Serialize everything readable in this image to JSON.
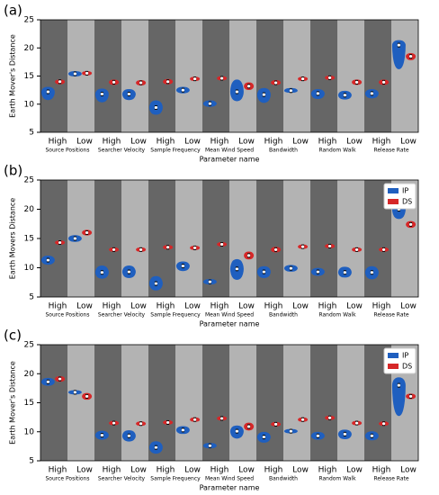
{
  "chart_data": [
    {
      "type": "violin",
      "panel_label": "(a)",
      "ylabel": "Earth Mover's Distance",
      "xlabel": "Parameter name",
      "categories": [
        "High",
        "Low",
        "High",
        "Low",
        "High",
        "Low",
        "High",
        "Low",
        "High",
        "Low",
        "High",
        "Low",
        "High",
        "Low"
      ],
      "groups": [
        "Source Positions",
        "Searcher Velocity",
        "Sample Frequency",
        "Mean Wind Speed",
        "Bandwidth",
        "Random Walk",
        "Release Rate"
      ],
      "ylim": [
        5,
        25
      ],
      "yticks": [
        5,
        10,
        15,
        20,
        25
      ],
      "legend": false,
      "stripe_colors": [
        "#666666",
        "#b3b3b3"
      ],
      "series": [
        {
          "color": "#1f5fbf",
          "values": [
            12.2,
            15.4,
            11.8,
            11.8,
            9.4,
            12.5,
            10.1,
            12.2,
            11.7,
            12.4,
            11.9,
            11.6,
            11.9,
            20.5
          ],
          "lows": [
            10.8,
            15.0,
            10.4,
            10.8,
            8.2,
            12.0,
            9.6,
            10.6,
            10.3,
            12.1,
            11.0,
            10.9,
            11.1,
            16.3
          ],
          "highs": [
            13.0,
            15.8,
            12.7,
            12.6,
            10.6,
            13.0,
            10.6,
            14.3,
            12.8,
            12.8,
            12.6,
            12.3,
            12.6,
            21.3
          ]
        },
        {
          "color": "#d62728",
          "values": [
            14.0,
            15.5,
            13.9,
            13.8,
            14.0,
            14.5,
            14.6,
            13.2,
            13.8,
            14.5,
            14.7,
            13.9,
            13.9,
            18.5
          ],
          "lows": [
            13.6,
            15.2,
            13.5,
            13.4,
            13.6,
            14.2,
            14.3,
            12.6,
            13.5,
            14.2,
            14.4,
            13.5,
            13.5,
            17.9
          ],
          "highs": [
            14.3,
            15.8,
            14.3,
            14.2,
            14.4,
            14.8,
            14.9,
            13.8,
            14.2,
            14.8,
            15.0,
            14.3,
            14.3,
            19.0
          ]
        }
      ]
    },
    {
      "type": "violin",
      "panel_label": "(b)",
      "ylabel": "Earth Movers Distance",
      "xlabel": "Parameter name",
      "categories": [
        "High",
        "Low",
        "High",
        "Low",
        "High",
        "Low",
        "High",
        "Low",
        "High",
        "Low",
        "High",
        "Low",
        "High",
        "Low"
      ],
      "groups": [
        "Source Positions",
        "Searcher Velocity",
        "Sample Frequency",
        "Mean Wind Speed",
        "Bandwidth",
        "Random Walk",
        "Release Rate"
      ],
      "ylim": [
        5,
        25
      ],
      "yticks": [
        5,
        10,
        15,
        20,
        25
      ],
      "legend": "upper right",
      "stripe_colors": [
        "#666666",
        "#b3b3b3"
      ],
      "series": [
        {
          "name": "IP",
          "color": "#1f5fbf",
          "values": [
            11.3,
            15.0,
            9.2,
            9.3,
            7.3,
            10.3,
            7.6,
            9.8,
            9.3,
            9.9,
            9.3,
            9.2,
            9.2,
            20.0
          ],
          "lows": [
            10.6,
            14.5,
            8.2,
            8.3,
            6.2,
            9.5,
            7.2,
            8.0,
            8.3,
            9.4,
            8.7,
            8.4,
            8.1,
            18.4
          ],
          "highs": [
            12.0,
            15.5,
            10.3,
            10.3,
            8.5,
            11.0,
            8.0,
            11.4,
            10.2,
            10.4,
            9.9,
            10.1,
            10.2,
            20.7
          ]
        },
        {
          "name": "DS",
          "color": "#d62728",
          "values": [
            14.3,
            16.0,
            13.1,
            13.1,
            13.5,
            13.4,
            14.0,
            12.1,
            13.1,
            13.6,
            13.7,
            13.1,
            13.1,
            17.4
          ],
          "lows": [
            14.0,
            15.6,
            12.8,
            12.8,
            13.2,
            13.1,
            13.7,
            11.5,
            12.7,
            13.3,
            13.4,
            12.8,
            12.8,
            16.9
          ],
          "highs": [
            14.6,
            16.4,
            13.4,
            13.4,
            13.8,
            13.7,
            14.3,
            12.7,
            13.5,
            13.9,
            14.0,
            13.4,
            13.4,
            17.9
          ]
        }
      ]
    },
    {
      "type": "violin",
      "panel_label": "(c)",
      "ylabel": "Earth Mover's Distance",
      "xlabel": "Parameter name",
      "categories": [
        "High",
        "Low",
        "High",
        "Low",
        "High",
        "Low",
        "High",
        "Low",
        "High",
        "Low",
        "High",
        "Low",
        "High",
        "Low"
      ],
      "groups": [
        "Source Positions",
        "Searcher Velocity",
        "Sample Frequency",
        "Mean Wind Speed",
        "Bandwidth",
        "Random Walk",
        "Release Rate"
      ],
      "ylim": [
        5,
        25
      ],
      "yticks": [
        5,
        10,
        15,
        20,
        25
      ],
      "legend": "upper right",
      "stripe_colors": [
        "#666666",
        "#b3b3b3"
      ],
      "series": [
        {
          "name": "IP",
          "color": "#1f5fbf",
          "values": [
            18.6,
            16.8,
            9.4,
            9.3,
            7.3,
            10.3,
            7.6,
            10.1,
            9.1,
            10.1,
            9.3,
            9.6,
            9.3,
            18.0
          ],
          "lows": [
            18.0,
            16.5,
            8.7,
            8.4,
            6.3,
            9.7,
            7.2,
            8.9,
            8.2,
            9.8,
            8.7,
            8.8,
            8.6,
            12.8
          ],
          "highs": [
            19.2,
            17.1,
            10.1,
            10.2,
            8.3,
            10.9,
            8.0,
            11.0,
            9.9,
            10.4,
            9.9,
            10.3,
            10.0,
            19.3
          ]
        },
        {
          "name": "DS",
          "color": "#d62728",
          "values": [
            19.1,
            16.1,
            11.5,
            11.4,
            11.6,
            12.1,
            12.3,
            10.9,
            11.3,
            12.1,
            12.4,
            11.5,
            11.4,
            16.1
          ],
          "lows": [
            18.7,
            15.6,
            11.2,
            11.1,
            11.3,
            11.8,
            12.0,
            10.3,
            11.0,
            11.8,
            12.1,
            11.2,
            11.1,
            15.7
          ],
          "highs": [
            19.5,
            16.6,
            11.8,
            11.7,
            11.9,
            12.4,
            12.6,
            11.5,
            11.6,
            12.4,
            12.7,
            11.8,
            11.7,
            16.5
          ]
        }
      ]
    }
  ]
}
